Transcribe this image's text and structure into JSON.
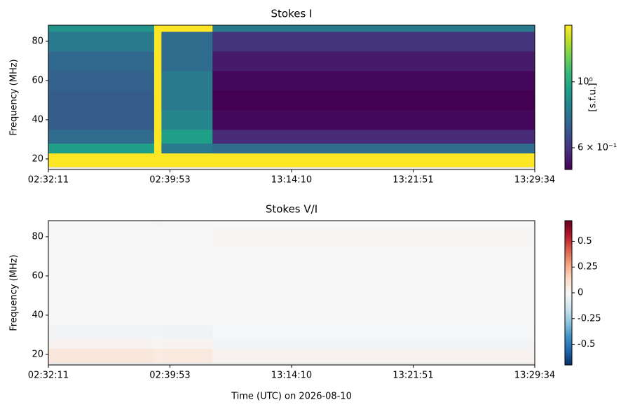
{
  "chart_data": [
    {
      "type": "heatmap",
      "title": "Stokes I",
      "ylabel": "Frequency (MHz)",
      "colorbar_label": "[s.f.u.]",
      "colormap": "viridis",
      "colorscale": "log",
      "xlim": [
        0,
        4
      ],
      "xticks": [
        {
          "value": 0,
          "label": "02:32:11"
        },
        {
          "value": 1,
          "label": "02:39:53"
        },
        {
          "value": 2,
          "label": "13:14:10"
        },
        {
          "value": 3,
          "label": "13:21:51"
        },
        {
          "value": 4,
          "label": "13:29:34"
        }
      ],
      "ylim": [
        14.6,
        88.2
      ],
      "yticks": [
        20,
        40,
        60,
        80
      ],
      "x_edges": [
        0,
        0.87,
        0.93,
        1.35,
        4
      ],
      "y_edges": [
        14.6,
        16,
        23,
        28,
        35,
        45,
        55,
        65,
        75,
        85,
        88.2
      ],
      "values": [
        [
          null,
          1.6,
          0.95,
          0.75,
          0.7,
          0.7,
          0.72,
          0.74,
          0.8,
          0.9
        ],
        [
          null,
          1.6,
          1.6,
          1.6,
          1.6,
          1.6,
          1.6,
          1.6,
          1.6,
          1.6
        ],
        [
          null,
          1.6,
          0.8,
          0.95,
          0.85,
          0.8,
          0.8,
          0.75,
          0.75,
          1.6
        ],
        [
          null,
          1.6,
          0.75,
          0.58,
          0.52,
          0.5,
          0.52,
          0.55,
          0.6,
          0.8
        ]
      ],
      "clim": [
        0.507,
        1.55
      ],
      "cticks": [
        {
          "value": 1,
          "label": "10⁰"
        },
        {
          "value": 0.6,
          "label": "6 × 10⁻¹"
        }
      ]
    },
    {
      "type": "heatmap",
      "title": "Stokes V/I",
      "ylabel": "Frequency (MHz)",
      "xlabel": "Time (UTC) on 2026-08-10",
      "colormap": "RdBu_r",
      "colorscale": "linear",
      "xlim": [
        0,
        4
      ],
      "xticks": [
        {
          "value": 0,
          "label": "02:32:11"
        },
        {
          "value": 1,
          "label": "02:39:53"
        },
        {
          "value": 2,
          "label": "13:14:10"
        },
        {
          "value": 3,
          "label": "13:21:51"
        },
        {
          "value": 4,
          "label": "13:29:34"
        }
      ],
      "ylim": [
        14.6,
        88.2
      ],
      "yticks": [
        20,
        40,
        60,
        80
      ],
      "x_edges": [
        0,
        0.87,
        0.93,
        1.35,
        4
      ],
      "y_edges": [
        14.6,
        16,
        23,
        28,
        35,
        45,
        55,
        65,
        75,
        85,
        88.2
      ],
      "values": [
        [
          null,
          0.08,
          0.02,
          -0.02,
          0,
          0,
          0,
          0,
          0,
          0
        ],
        [
          null,
          0.06,
          0.01,
          -0.02,
          0,
          0,
          0,
          0,
          0,
          0.01
        ],
        [
          null,
          0.07,
          0.02,
          -0.03,
          0,
          0,
          0,
          0,
          0,
          0
        ],
        [
          null,
          0.02,
          -0.02,
          -0.01,
          0,
          0,
          0,
          0,
          0.01,
          0
        ]
      ],
      "clim": [
        -0.7,
        0.7
      ],
      "cticks": [
        0.5,
        0.25,
        0,
        -0.25,
        -0.5
      ]
    }
  ]
}
